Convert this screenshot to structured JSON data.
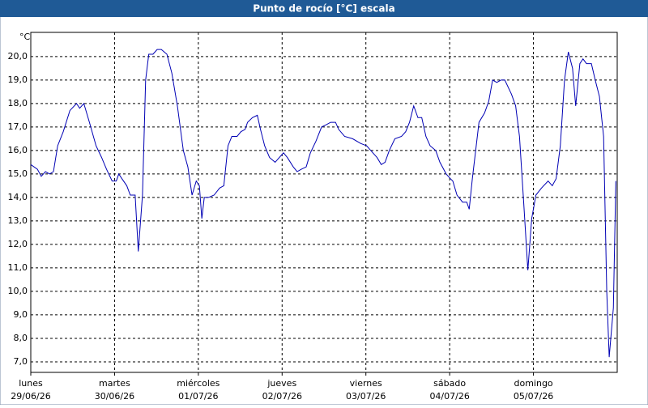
{
  "chart_data": {
    "type": "line",
    "title": "Punto de rocío [°C] escala",
    "y_unit": "°C",
    "x": [
      0,
      1.9,
      3.0,
      4.2,
      5.4,
      6.5,
      7.7,
      9.3,
      11.2,
      13.1,
      14.0,
      15.2,
      16.8,
      18.7,
      20.3,
      21.7,
      23.3,
      24.5,
      25.2,
      26.1,
      27.5,
      28.5,
      29.9,
      30.8,
      32.0,
      32.9,
      33.8,
      35.0,
      36.2,
      37.4,
      39.0,
      40.4,
      42.0,
      43.7,
      45.0,
      46.2,
      47.4,
      48.3,
      49.0,
      49.7,
      50.9,
      52.5,
      54.1,
      55.3,
      56.5,
      57.6,
      59.1,
      60.2,
      61.4,
      62.1,
      63.5,
      64.9,
      65.8,
      67.0,
      68.4,
      70.0,
      71.2,
      72.4,
      73.5,
      75.2,
      76.3,
      77.5,
      78.9,
      80.1,
      81.7,
      83.3,
      84.7,
      85.9,
      87.3,
      88.2,
      89.9,
      92.2,
      94.5,
      96.2,
      98.0,
      99.2,
      100.4,
      101.5,
      102.7,
      104.3,
      106.2,
      107.4,
      108.5,
      109.7,
      110.9,
      112.0,
      113.2,
      114.4,
      116.0,
      117.2,
      119.0,
      120.2,
      120.9,
      122.1,
      123.7,
      124.9,
      125.6,
      126.5,
      128.4,
      130.0,
      131.2,
      132.3,
      133.5,
      134.7,
      135.8,
      137.7,
      138.9,
      140.0,
      141.2,
      142.4,
      143.5,
      144.7,
      146.3,
      148.2,
      149.4,
      150.5,
      151.7,
      152.9,
      154.0,
      155.2,
      156.1,
      157.3,
      158.2,
      159.2,
      160.6,
      161.7,
      162.9,
      164.1,
      165.0,
      165.7,
      166.9,
      167.6
    ],
    "series": [
      {
        "color": "#0000b4",
        "values": [
          15.4,
          15.2,
          14.9,
          15.1,
          15.0,
          15.1,
          16.2,
          16.8,
          17.7,
          18.0,
          17.8,
          18.0,
          17.2,
          16.2,
          15.7,
          15.2,
          14.7,
          14.7,
          15.0,
          14.8,
          14.5,
          14.1,
          14.1,
          11.7,
          14.1,
          19.0,
          20.1,
          20.1,
          20.3,
          20.3,
          20.1,
          19.3,
          17.9,
          16.0,
          15.3,
          14.1,
          14.7,
          14.5,
          13.1,
          14.0,
          14.0,
          14.1,
          14.4,
          14.5,
          16.2,
          16.6,
          16.6,
          16.8,
          16.9,
          17.2,
          17.4,
          17.5,
          16.9,
          16.2,
          15.7,
          15.5,
          15.7,
          15.9,
          15.7,
          15.3,
          15.1,
          15.2,
          15.3,
          15.9,
          16.4,
          17.0,
          17.1,
          17.2,
          17.2,
          16.9,
          16.6,
          16.5,
          16.3,
          16.2,
          15.9,
          15.7,
          15.4,
          15.5,
          16.0,
          16.5,
          16.6,
          16.8,
          17.2,
          17.9,
          17.4,
          17.4,
          16.6,
          16.2,
          16.0,
          15.5,
          15.0,
          14.8,
          14.7,
          14.1,
          13.8,
          13.8,
          13.5,
          14.8,
          17.2,
          17.6,
          18.1,
          19.0,
          18.9,
          19.0,
          19.0,
          18.4,
          17.9,
          16.6,
          13.8,
          10.9,
          13.1,
          14.1,
          14.4,
          14.7,
          14.5,
          14.8,
          16.2,
          19.0,
          20.2,
          19.5,
          17.9,
          19.7,
          19.9,
          19.7,
          19.7,
          19.0,
          18.3,
          16.6,
          10.0,
          7.2,
          9.3,
          14.7
        ]
      }
    ],
    "xlim": [
      0,
      168
    ],
    "xticks": [
      {
        "value": 0,
        "label": [
          "lunes",
          "29/06/26"
        ]
      },
      {
        "value": 24,
        "label": [
          "martes",
          "30/06/26"
        ]
      },
      {
        "value": 48,
        "label": [
          "miércoles",
          "01/07/26"
        ]
      },
      {
        "value": 72,
        "label": [
          "jueves",
          "02/07/26"
        ]
      },
      {
        "value": 96,
        "label": [
          "viernes",
          "03/07/26"
        ]
      },
      {
        "value": 120,
        "label": [
          "sábado",
          "04/07/26"
        ]
      },
      {
        "value": 144,
        "label": [
          "domingo",
          "05/07/26"
        ]
      }
    ],
    "ylim": [
      6.55,
      21.03
    ],
    "yticks": [
      {
        "value": 7,
        "label": "7,0"
      },
      {
        "value": 8,
        "label": "8,0"
      },
      {
        "value": 9,
        "label": "9,0"
      },
      {
        "value": 10,
        "label": "10,0"
      },
      {
        "value": 11,
        "label": "11,0"
      },
      {
        "value": 12,
        "label": "12,0"
      },
      {
        "value": 13,
        "label": "13,0"
      },
      {
        "value": 14,
        "label": "14,0"
      },
      {
        "value": 15,
        "label": "15,0"
      },
      {
        "value": 16,
        "label": "16,0"
      },
      {
        "value": 17,
        "label": "17,0"
      },
      {
        "value": 18,
        "label": "18,0"
      },
      {
        "value": 19,
        "label": "19,0"
      },
      {
        "value": 20,
        "label": "20,0"
      }
    ],
    "grid": true
  }
}
